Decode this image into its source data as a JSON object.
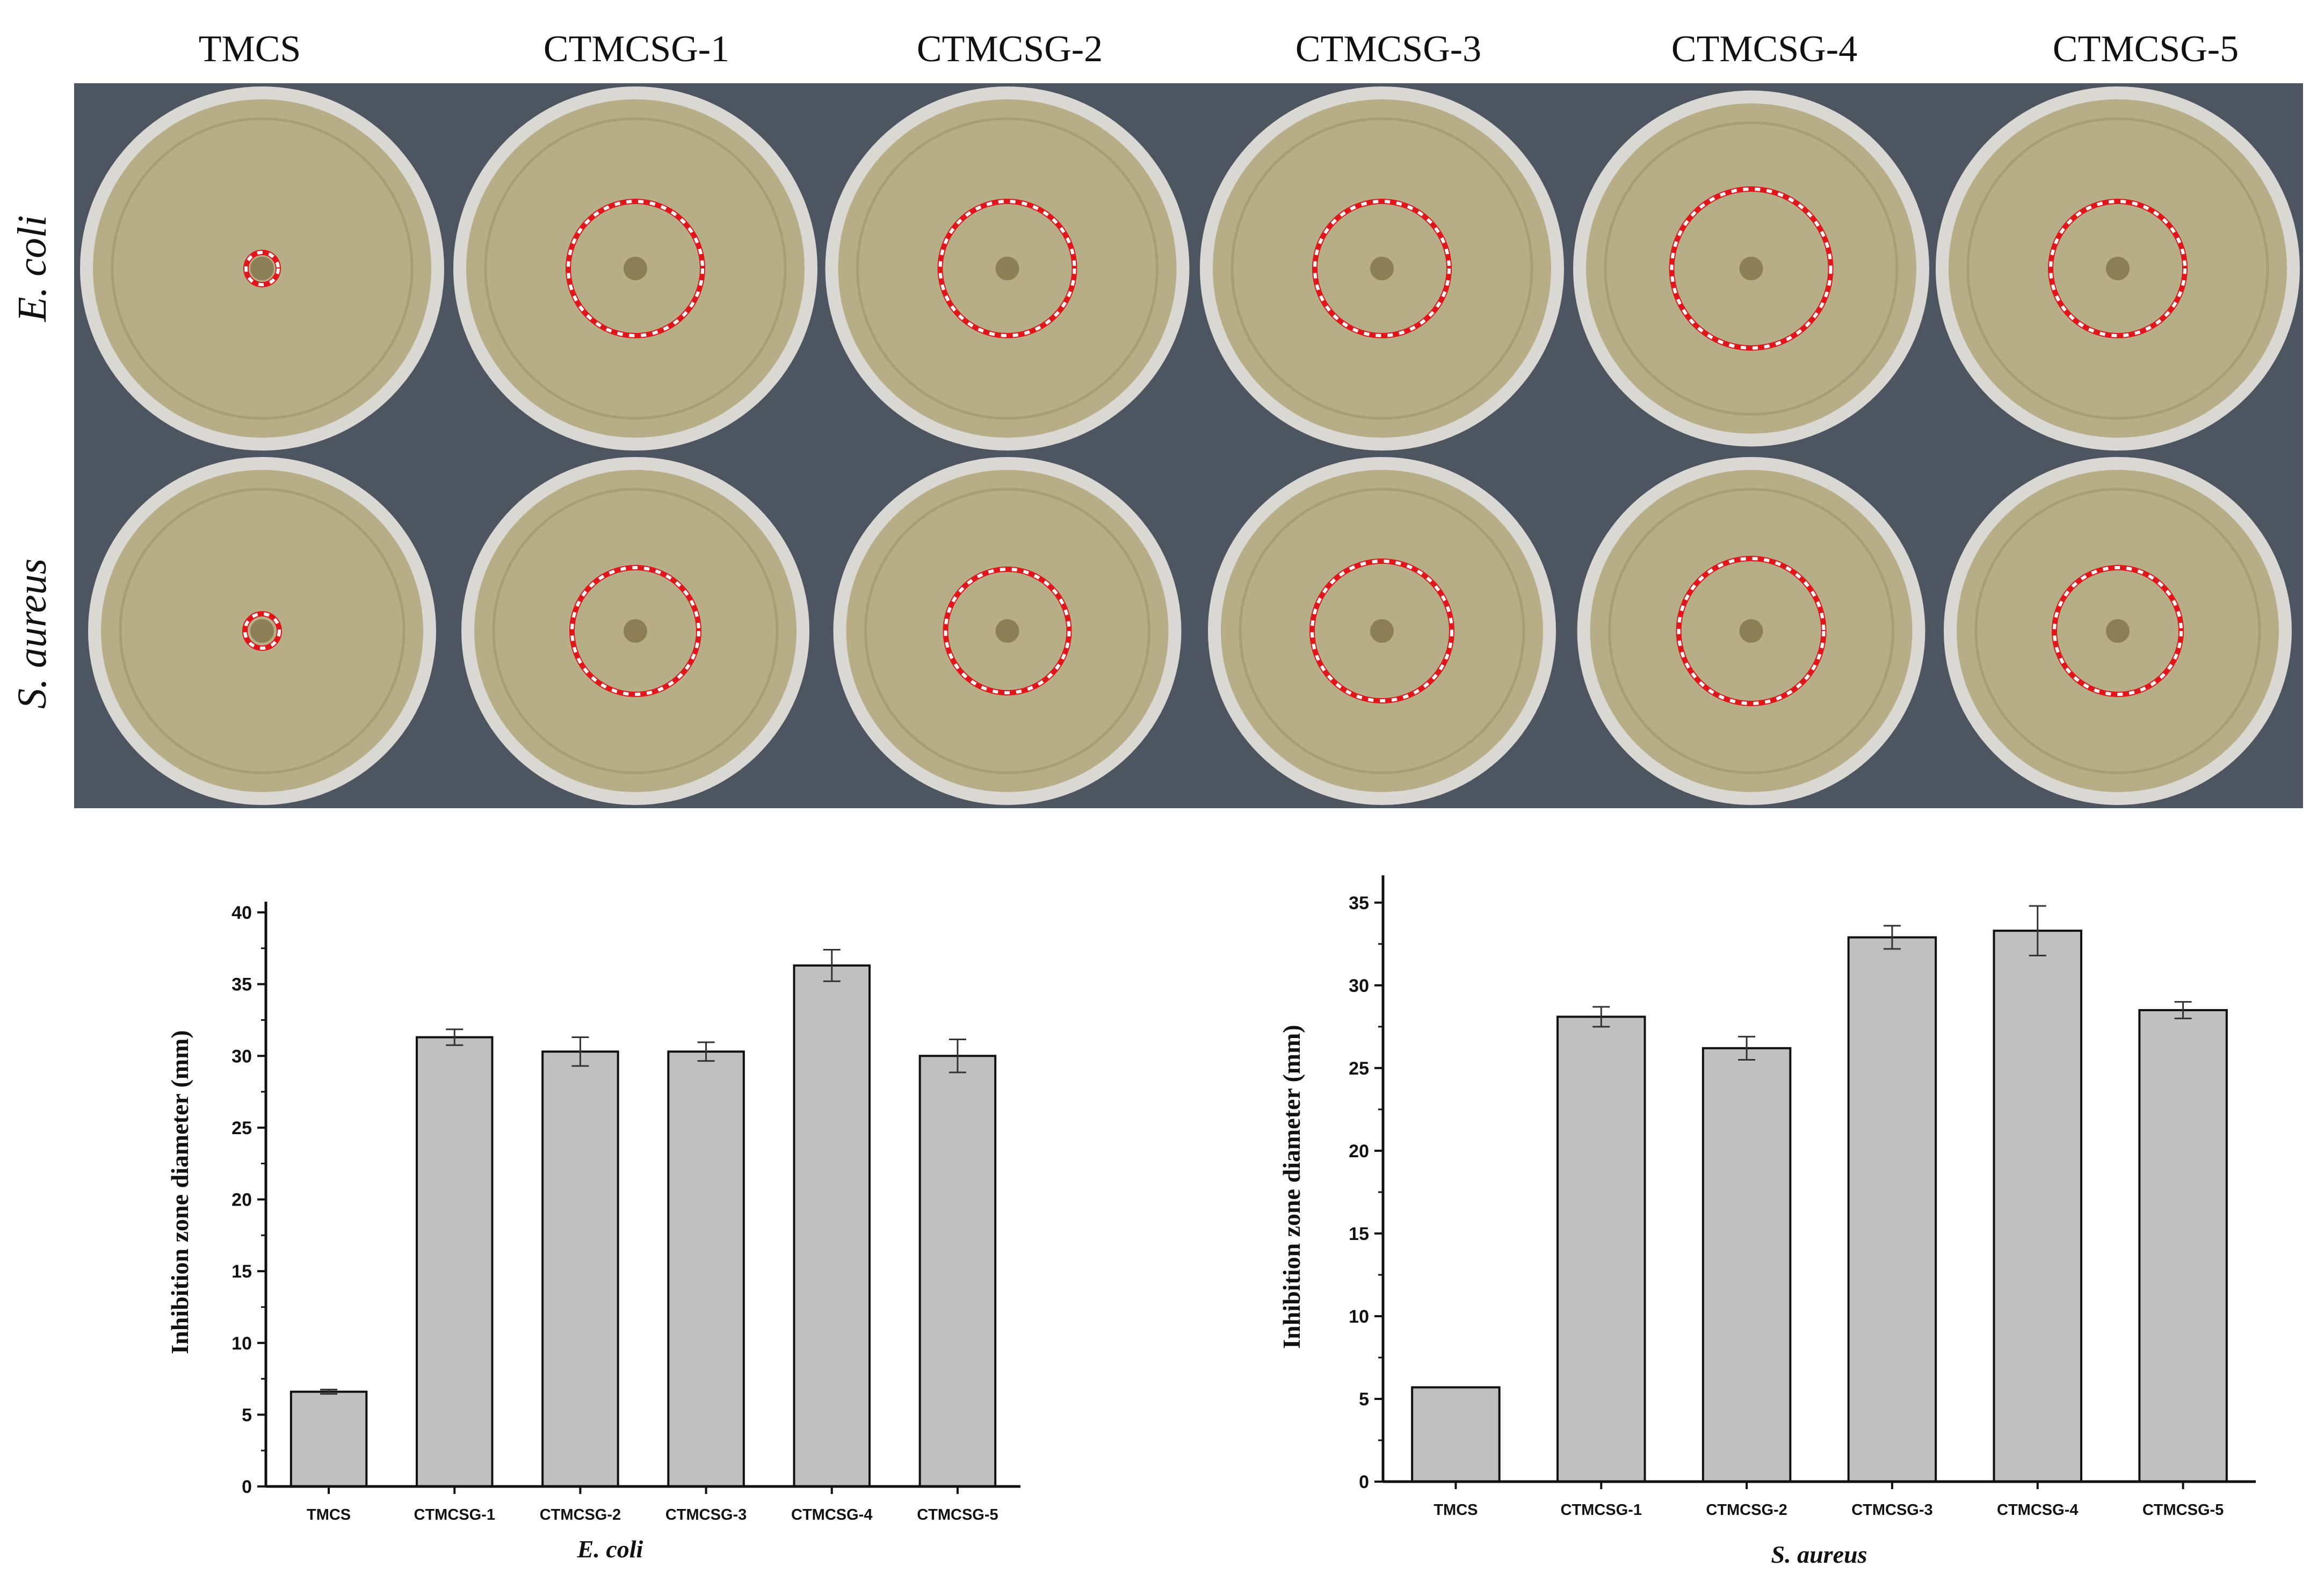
{
  "photo_panel": {
    "column_headers": [
      "TMCS",
      "CTMCSG-1",
      "CTMCSG-2",
      "CTMCSG-3",
      "CTMCSG-4",
      "CTMCSG-5"
    ],
    "row_labels": [
      "E. coli",
      "S. aureus"
    ],
    "colors": {
      "agar": "#b7ad86",
      "dish_rim": "#d9d8d2",
      "background": "#4d5560",
      "zone_marker": "#e0161b"
    }
  },
  "chart_data": [
    {
      "type": "bar",
      "title": "",
      "categories": [
        "TMCS",
        "CTMCSG-1",
        "CTMCSG-2",
        "CTMCSG-3",
        "CTMCSG-4",
        "CTMCSG-5"
      ],
      "values": [
        6.6,
        31.3,
        30.3,
        30.3,
        36.3,
        30.0
      ],
      "errors": [
        0.15,
        0.55,
        1.0,
        0.65,
        1.1,
        1.15
      ],
      "xlabel": "E. coli",
      "ylabel": "Inhibition zone diameter (mm)",
      "ylim": [
        0,
        40
      ],
      "yticks": [
        0,
        5,
        10,
        15,
        20,
        25,
        30,
        35,
        40
      ],
      "bar_color": "#c0c0c0",
      "grid": false
    },
    {
      "type": "bar",
      "title": "",
      "categories": [
        "TMCS",
        "CTMCSG-1",
        "CTMCSG-2",
        "CTMCSG-3",
        "CTMCSG-4",
        "CTMCSG-5"
      ],
      "values": [
        5.7,
        28.1,
        26.2,
        32.9,
        33.3,
        28.5
      ],
      "errors": [
        0.0,
        0.6,
        0.7,
        0.7,
        1.5,
        0.5
      ],
      "xlabel": "S. aureus",
      "ylabel": "Inhibition zone diameter (mm)",
      "ylim": [
        0,
        36
      ],
      "yticks": [
        0,
        5,
        10,
        15,
        20,
        25,
        30,
        35
      ],
      "bar_color": "#c0c0c0",
      "grid": false
    }
  ]
}
